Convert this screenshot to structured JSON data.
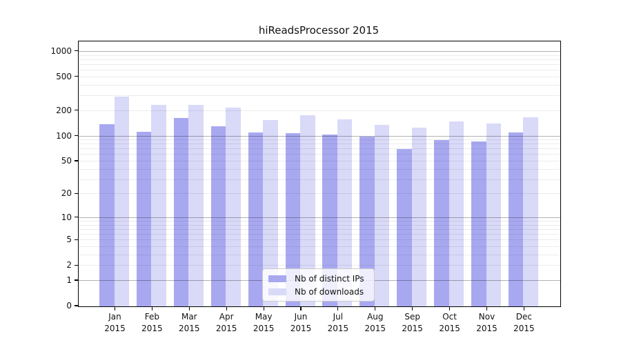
{
  "chart_data": {
    "type": "bar",
    "title": "hiReadsProcessor 2015",
    "categories": [
      "Jan 2015",
      "Feb 2015",
      "Mar 2015",
      "Apr 2015",
      "May 2015",
      "Jun 2015",
      "Jul 2015",
      "Aug 2015",
      "Sep 2015",
      "Oct 2015",
      "Nov 2015",
      "Dec 2015"
    ],
    "series": [
      {
        "name": "Nb of distinct IPs",
        "color": "#a8a8f0",
        "values": [
          139,
          113,
          165,
          132,
          110,
          108,
          104,
          99,
          70,
          91,
          86,
          112
        ]
      },
      {
        "name": "Nb of downloads",
        "color": "#d9d9f8",
        "values": [
          298,
          236,
          238,
          218,
          157,
          179,
          159,
          137,
          127,
          151,
          142,
          168
        ]
      }
    ],
    "y_axis": {
      "scale": "log1p",
      "tick_values": [
        0,
        1,
        2,
        5,
        10,
        20,
        50,
        100,
        200,
        500,
        1000
      ],
      "major_gridlines": [
        1,
        10,
        100,
        1000
      ],
      "minor_gridlines": [
        2,
        3,
        4,
        5,
        6,
        7,
        8,
        9,
        20,
        30,
        40,
        50,
        60,
        70,
        80,
        90,
        200,
        300,
        400,
        500,
        600,
        700,
        800,
        900
      ],
      "range_top": 1000
    },
    "legend": {
      "entries": [
        {
          "label": "Nb of distinct IPs",
          "color": "#a8a8f0"
        },
        {
          "label": "Nb of downloads",
          "color": "#d9d9f8"
        }
      ],
      "position": "lower center"
    },
    "grid": "on",
    "background": "#ffffff"
  }
}
